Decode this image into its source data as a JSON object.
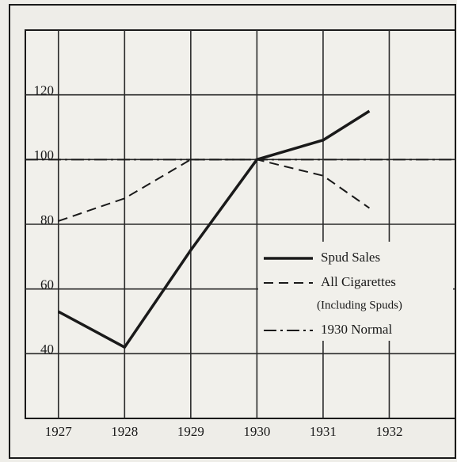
{
  "chart_data": {
    "type": "line",
    "xlim": [
      1926.5,
      1933
    ],
    "xticks": [
      1927,
      1928,
      1929,
      1930,
      1931,
      1932
    ],
    "ylim": [
      20,
      140
    ],
    "yticks": [
      40,
      60,
      80,
      100,
      120
    ],
    "grid": true,
    "legend": "lower right",
    "series": [
      {
        "name": "Spud Sales",
        "color": "#1a1a1a",
        "dash": "solid",
        "x": [
          1927,
          1928,
          1929,
          1930,
          1931,
          1931.7
        ],
        "values": [
          53,
          42,
          72,
          100,
          106,
          115
        ]
      },
      {
        "name": "All Cigarettes",
        "name_note": "(Including Spuds)",
        "color": "#1a1a1a",
        "dash": "dashed",
        "x": [
          1927,
          1928,
          1929,
          1930,
          1931,
          1931.7
        ],
        "values": [
          81,
          88,
          100,
          100,
          95,
          85
        ]
      },
      {
        "name": "1930 Normal",
        "color": "#1a1a1a",
        "dash": "dashdot",
        "x": [
          1926.5,
          1933
        ],
        "values": [
          100,
          100
        ]
      }
    ]
  }
}
